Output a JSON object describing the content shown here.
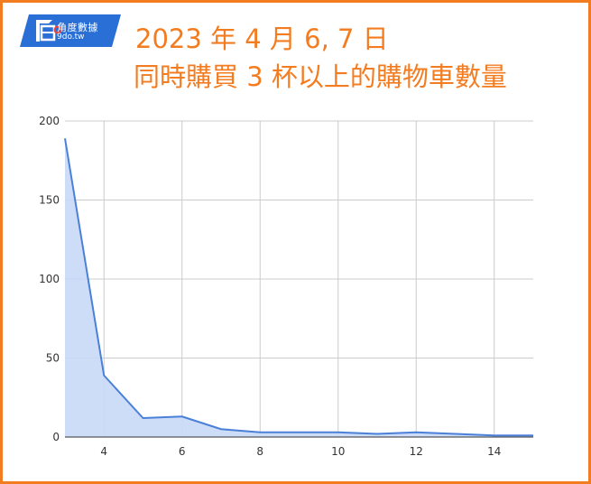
{
  "logo": {
    "mark": "角",
    "name_cn": "角度數據",
    "name_en": "9do.tw",
    "colors": {
      "background": "#2a6fd6",
      "accent": "#e8463c"
    }
  },
  "title": {
    "line1": "2023 年 4 月 6, 7 日",
    "line2": "同時購買 3 杯以上的購物車數量"
  },
  "colors": {
    "border": "#f47c20",
    "title": "#f47c20",
    "line": "#4a80d8",
    "area": "#c8d9f7",
    "grid": "#cccccc"
  },
  "chart_data": {
    "type": "area",
    "title": "",
    "xlabel": "",
    "ylabel": "",
    "x": [
      3,
      4,
      5,
      6,
      7,
      8,
      9,
      10,
      11,
      12,
      13,
      14,
      15
    ],
    "series": [
      {
        "values": [
          189,
          39,
          12,
          13,
          5,
          3,
          3,
          3,
          2,
          3,
          2,
          1,
          1
        ]
      }
    ],
    "xlim": [
      3,
      15
    ],
    "ylim": [
      0,
      200
    ],
    "xticks": [
      "4",
      "6",
      "8",
      "10",
      "12",
      "14"
    ],
    "yticks": [
      "0",
      "50",
      "100",
      "150",
      "200"
    ],
    "grid": true,
    "legend": "none"
  }
}
